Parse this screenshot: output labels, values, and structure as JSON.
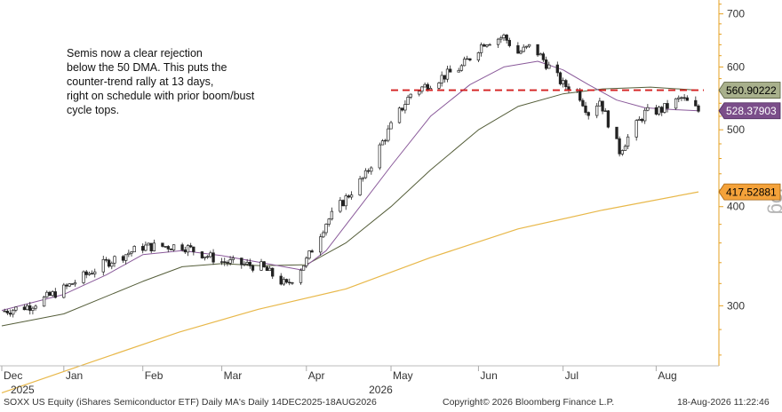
{
  "chart_data": {
    "type": "candlestick",
    "title": "",
    "annotation": [
      "Semis now a clear rejection",
      "below the 50 DMA. This puts the",
      "counter-trend rally at 13 days,",
      "right on schedule with prior boom/bust",
      "cycle tops."
    ],
    "y_scale": "log",
    "y_scale_label": "log",
    "ylim": [
      252,
      725
    ],
    "y_ticks": [
      300,
      400,
      500,
      600,
      700
    ],
    "x_start": "2025-12-14",
    "x_end": "2026-08-18",
    "x_month_ticks": [
      {
        "label": "Dec",
        "date": "2025-12-14"
      },
      {
        "label": "Jan",
        "date": "2026-01-05"
      },
      {
        "label": "Feb",
        "date": "2026-02-02"
      },
      {
        "label": "Mar",
        "date": "2026-03-02"
      },
      {
        "label": "Apr",
        "date": "2026-04-01"
      },
      {
        "label": "May",
        "date": "2026-05-01"
      },
      {
        "label": "Jun",
        "date": "2026-06-01"
      },
      {
        "label": "Jul",
        "date": "2026-07-01"
      },
      {
        "label": "Aug",
        "date": "2026-08-03"
      }
    ],
    "x_year_labels": [
      {
        "label": "2025",
        "date": "2025-12-14"
      },
      {
        "label": "2026",
        "date": "2026-04-20"
      }
    ],
    "price_series": [
      {
        "date": "2025-12-14",
        "close": 295
      },
      {
        "date": "2025-12-24",
        "close": 300
      },
      {
        "date": "2026-01-05",
        "close": 315
      },
      {
        "date": "2026-01-20",
        "close": 340
      },
      {
        "date": "2026-02-02",
        "close": 356
      },
      {
        "date": "2026-02-16",
        "close": 357
      },
      {
        "date": "2026-03-02",
        "close": 341
      },
      {
        "date": "2026-03-16",
        "close": 336
      },
      {
        "date": "2026-03-25",
        "close": 318
      },
      {
        "date": "2026-04-01",
        "close": 342
      },
      {
        "date": "2026-04-08",
        "close": 382
      },
      {
        "date": "2026-04-15",
        "close": 410
      },
      {
        "date": "2026-04-22",
        "close": 438
      },
      {
        "date": "2026-05-01",
        "close": 505
      },
      {
        "date": "2026-05-08",
        "close": 555
      },
      {
        "date": "2026-05-18",
        "close": 580
      },
      {
        "date": "2026-05-26",
        "close": 600
      },
      {
        "date": "2026-06-03",
        "close": 645
      },
      {
        "date": "2026-06-10",
        "close": 655
      },
      {
        "date": "2026-06-15",
        "close": 625
      },
      {
        "date": "2026-06-20",
        "close": 638
      },
      {
        "date": "2026-06-26",
        "close": 600
      },
      {
        "date": "2026-07-01",
        "close": 570
      },
      {
        "date": "2026-07-06",
        "close": 560
      },
      {
        "date": "2026-07-10",
        "close": 525
      },
      {
        "date": "2026-07-14",
        "close": 545
      },
      {
        "date": "2026-07-18",
        "close": 500
      },
      {
        "date": "2026-07-21",
        "close": 470
      },
      {
        "date": "2026-07-25",
        "close": 495
      },
      {
        "date": "2026-07-30",
        "close": 525
      },
      {
        "date": "2026-08-05",
        "close": 530
      },
      {
        "date": "2026-08-12",
        "close": 548
      },
      {
        "date": "2026-08-18",
        "close": 528
      }
    ],
    "ma_short": [
      {
        "date": "2025-12-14",
        "value": 296
      },
      {
        "date": "2026-01-05",
        "value": 310
      },
      {
        "date": "2026-01-20",
        "value": 328
      },
      {
        "date": "2026-02-02",
        "value": 348
      },
      {
        "date": "2026-02-16",
        "value": 352
      },
      {
        "date": "2026-03-02",
        "value": 347
      },
      {
        "date": "2026-03-16",
        "value": 340
      },
      {
        "date": "2026-03-30",
        "value": 333
      },
      {
        "date": "2026-04-08",
        "value": 352
      },
      {
        "date": "2026-04-20",
        "value": 400
      },
      {
        "date": "2026-05-01",
        "value": 450
      },
      {
        "date": "2026-05-15",
        "value": 520
      },
      {
        "date": "2026-05-29",
        "value": 570
      },
      {
        "date": "2026-06-10",
        "value": 600
      },
      {
        "date": "2026-06-22",
        "value": 610
      },
      {
        "date": "2026-07-01",
        "value": 595
      },
      {
        "date": "2026-07-10",
        "value": 570
      },
      {
        "date": "2026-07-20",
        "value": 545
      },
      {
        "date": "2026-07-30",
        "value": 533
      },
      {
        "date": "2026-08-10",
        "value": 530
      },
      {
        "date": "2026-08-18",
        "value": 528.37903
      }
    ],
    "ma_50": [
      {
        "date": "2025-12-14",
        "value": 283
      },
      {
        "date": "2026-01-05",
        "value": 293
      },
      {
        "date": "2026-02-02",
        "value": 322
      },
      {
        "date": "2026-02-16",
        "value": 336
      },
      {
        "date": "2026-03-02",
        "value": 339
      },
      {
        "date": "2026-03-16",
        "value": 337
      },
      {
        "date": "2026-04-01",
        "value": 338
      },
      {
        "date": "2026-04-15",
        "value": 360
      },
      {
        "date": "2026-05-01",
        "value": 400
      },
      {
        "date": "2026-05-15",
        "value": 445
      },
      {
        "date": "2026-06-01",
        "value": 500
      },
      {
        "date": "2026-06-15",
        "value": 535
      },
      {
        "date": "2026-07-01",
        "value": 555
      },
      {
        "date": "2026-07-15",
        "value": 563
      },
      {
        "date": "2026-08-01",
        "value": 566
      },
      {
        "date": "2026-08-18",
        "value": 560.90222
      }
    ],
    "ma_200": [
      {
        "date": "2025-12-14",
        "value": 233
      },
      {
        "date": "2026-01-15",
        "value": 255
      },
      {
        "date": "2026-02-15",
        "value": 278
      },
      {
        "date": "2026-03-15",
        "value": 297
      },
      {
        "date": "2026-04-15",
        "value": 315
      },
      {
        "date": "2026-05-15",
        "value": 345
      },
      {
        "date": "2026-06-15",
        "value": 375
      },
      {
        "date": "2026-07-15",
        "value": 396
      },
      {
        "date": "2026-08-18",
        "value": 417.52881
      }
    ],
    "resistance_level": 560.90222,
    "badges": [
      {
        "value": "560.90222",
        "bg": "#a8b08c",
        "fg": "#000000",
        "border": "#5a6040",
        "ref": 560.90222
      },
      {
        "value": "528.37903",
        "bg": "#7b4e8a",
        "fg": "#ffffff",
        "border": "#4d2a5c",
        "ref": 528.37903
      },
      {
        "value": "417.52881",
        "bg": "#f4a23a",
        "fg": "#000000",
        "border": "#a06010",
        "ref": 417.52881
      }
    ],
    "colors": {
      "candle": "#222222",
      "ma_short": "#8a5a9a",
      "ma_50": "#555e3a",
      "ma_200": "#e8b84a",
      "resistance": "#d42020",
      "axis": "#e6a020"
    }
  },
  "footer": {
    "left": "SOXX US Equity (iShares Semiconductor ETF) Daily MA's Daily 14DEC2025-18AUG2026",
    "center": "Copyright© 2026 Bloomberg Finance L.P.",
    "right": "18-Aug-2026 11:22:46"
  }
}
